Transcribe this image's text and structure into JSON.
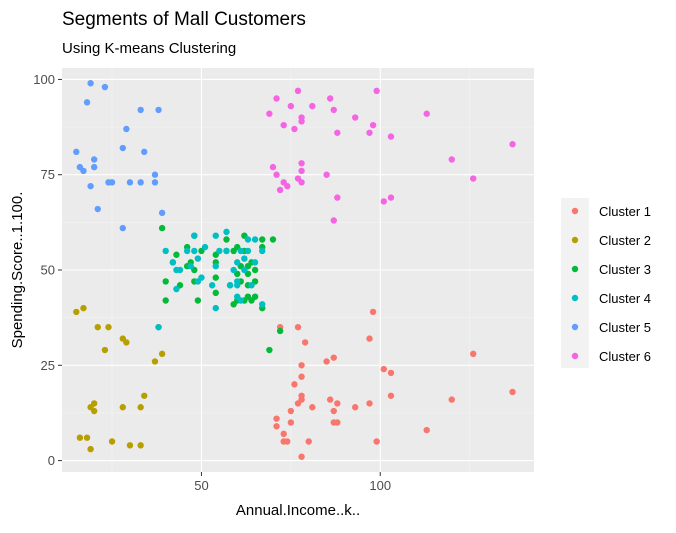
{
  "chart_data": {
    "type": "scatter",
    "title": "Segments of Mall Customers",
    "subtitle": "Using K-means Clustering",
    "xlabel": "Annual.Income..k..",
    "ylabel": "Spending.Score..1.100.",
    "xlim": [
      11,
      143
    ],
    "ylim": [
      -3,
      103
    ],
    "xticks": [
      {
        "value": 50,
        "label": "50"
      },
      {
        "value": 100,
        "label": "100"
      }
    ],
    "yticks": [
      {
        "value": 0,
        "label": "0"
      },
      {
        "value": 25,
        "label": "25"
      },
      {
        "value": 50,
        "label": "50"
      },
      {
        "value": 75,
        "label": "75"
      },
      {
        "value": 100,
        "label": "100"
      }
    ],
    "grid": true,
    "legend_position": "right",
    "colors": {
      "panel_background": "#ebebeb",
      "grid_major": "#ffffff",
      "grid_minor": "#f4f4f4"
    },
    "series": [
      {
        "name": "Cluster 1",
        "color": "#f8766d",
        "points": [
          [
            71,
            11
          ],
          [
            71,
            9
          ],
          [
            72,
            35
          ],
          [
            73,
            5
          ],
          [
            73,
            7
          ],
          [
            74,
            5
          ],
          [
            75,
            10
          ],
          [
            75,
            13
          ],
          [
            76,
            20
          ],
          [
            77,
            15
          ],
          [
            77,
            35
          ],
          [
            78,
            1
          ],
          [
            78,
            16
          ],
          [
            78,
            22
          ],
          [
            78,
            17
          ],
          [
            78,
            25
          ],
          [
            79,
            31
          ],
          [
            80,
            5
          ],
          [
            81,
            14
          ],
          [
            85,
            26
          ],
          [
            86,
            16
          ],
          [
            87,
            27
          ],
          [
            87,
            13
          ],
          [
            87,
            10
          ],
          [
            88,
            15
          ],
          [
            88,
            10
          ],
          [
            93,
            14
          ],
          [
            97,
            15
          ],
          [
            97,
            32
          ],
          [
            98,
            39
          ],
          [
            99,
            5
          ],
          [
            101,
            24
          ],
          [
            103,
            17
          ],
          [
            103,
            23
          ],
          [
            113,
            8
          ],
          [
            120,
            16
          ],
          [
            126,
            28
          ],
          [
            137,
            18
          ]
        ]
      },
      {
        "name": "Cluster 2",
        "color": "#b79f00",
        "points": [
          [
            15,
            39
          ],
          [
            16,
            6
          ],
          [
            17,
            40
          ],
          [
            18,
            6
          ],
          [
            19,
            3
          ],
          [
            19,
            14
          ],
          [
            20,
            15
          ],
          [
            20,
            13
          ],
          [
            21,
            35
          ],
          [
            23,
            29
          ],
          [
            24,
            35
          ],
          [
            25,
            5
          ],
          [
            28,
            14
          ],
          [
            28,
            32
          ],
          [
            29,
            31
          ],
          [
            33,
            4
          ],
          [
            33,
            14
          ],
          [
            34,
            17
          ],
          [
            37,
            26
          ],
          [
            38,
            35
          ],
          [
            39,
            28
          ],
          [
            30,
            4
          ]
        ]
      },
      {
        "name": "Cluster 3",
        "color": "#00ba38",
        "points": [
          [
            39,
            61
          ],
          [
            40,
            47
          ],
          [
            40,
            42
          ],
          [
            42,
            52
          ],
          [
            43,
            54
          ],
          [
            44,
            46
          ],
          [
            46,
            51
          ],
          [
            46,
            56
          ],
          [
            47,
            52
          ],
          [
            48,
            59
          ],
          [
            48,
            50
          ],
          [
            48,
            47
          ],
          [
            49,
            42
          ],
          [
            50,
            55
          ],
          [
            54,
            54
          ],
          [
            54,
            44
          ],
          [
            54,
            52
          ],
          [
            54,
            48
          ],
          [
            57,
            58
          ],
          [
            57,
            55
          ],
          [
            58,
            46
          ],
          [
            59,
            41
          ],
          [
            59,
            55
          ],
          [
            60,
            49
          ],
          [
            60,
            42
          ],
          [
            60,
            56
          ],
          [
            61,
            47
          ],
          [
            61,
            51
          ],
          [
            62,
            59
          ],
          [
            62,
            55
          ],
          [
            62,
            42
          ],
          [
            63,
            49
          ],
          [
            63,
            43
          ],
          [
            63,
            51
          ],
          [
            63,
            46
          ],
          [
            64,
            52
          ],
          [
            65,
            47
          ],
          [
            65,
            43
          ],
          [
            65,
            50
          ],
          [
            67,
            58
          ],
          [
            67,
            56
          ],
          [
            67,
            40
          ],
          [
            69,
            29
          ],
          [
            70,
            58
          ],
          [
            72,
            34
          ],
          [
            64,
            42
          ]
        ]
      },
      {
        "name": "Cluster 4",
        "color": "#00bfc4",
        "points": [
          [
            38,
            35
          ],
          [
            40,
            55
          ],
          [
            42,
            52
          ],
          [
            43,
            50
          ],
          [
            43,
            45
          ],
          [
            44,
            50
          ],
          [
            46,
            55
          ],
          [
            47,
            51
          ],
          [
            48,
            55
          ],
          [
            48,
            59
          ],
          [
            49,
            47
          ],
          [
            49,
            53
          ],
          [
            50,
            48
          ],
          [
            51,
            56
          ],
          [
            53,
            46
          ],
          [
            54,
            51
          ],
          [
            54,
            59
          ],
          [
            54,
            40
          ],
          [
            55,
            55
          ],
          [
            57,
            55
          ],
          [
            57,
            60
          ],
          [
            58,
            46
          ],
          [
            59,
            50
          ],
          [
            60,
            47
          ],
          [
            60,
            52
          ],
          [
            60,
            46
          ],
          [
            61,
            55
          ],
          [
            62,
            53
          ],
          [
            62,
            50
          ],
          [
            63,
            55
          ],
          [
            63,
            58
          ],
          [
            64,
            46
          ],
          [
            65,
            52
          ],
          [
            65,
            58
          ],
          [
            67,
            55
          ],
          [
            67,
            41
          ],
          [
            60,
            43
          ],
          [
            61,
            42
          ]
        ]
      },
      {
        "name": "Cluster 5",
        "color": "#619cff",
        "points": [
          [
            15,
            81
          ],
          [
            16,
            77
          ],
          [
            17,
            76
          ],
          [
            18,
            94
          ],
          [
            19,
            72
          ],
          [
            19,
            99
          ],
          [
            20,
            77
          ],
          [
            20,
            79
          ],
          [
            21,
            66
          ],
          [
            23,
            98
          ],
          [
            24,
            73
          ],
          [
            25,
            73
          ],
          [
            28,
            82
          ],
          [
            28,
            61
          ],
          [
            29,
            87
          ],
          [
            30,
            73
          ],
          [
            33,
            73
          ],
          [
            33,
            92
          ],
          [
            34,
            81
          ],
          [
            37,
            75
          ],
          [
            38,
            92
          ],
          [
            39,
            65
          ],
          [
            37,
            73
          ]
        ]
      },
      {
        "name": "Cluster 6",
        "color": "#f564e3",
        "points": [
          [
            69,
            91
          ],
          [
            70,
            77
          ],
          [
            71,
            95
          ],
          [
            71,
            75
          ],
          [
            72,
            71
          ],
          [
            73,
            88
          ],
          [
            73,
            73
          ],
          [
            74,
            72
          ],
          [
            75,
            93
          ],
          [
            76,
            87
          ],
          [
            77,
            97
          ],
          [
            77,
            74
          ],
          [
            78,
            90
          ],
          [
            78,
            76
          ],
          [
            78,
            89
          ],
          [
            78,
            78
          ],
          [
            78,
            73
          ],
          [
            81,
            93
          ],
          [
            85,
            75
          ],
          [
            86,
            95
          ],
          [
            87,
            63
          ],
          [
            87,
            92
          ],
          [
            88,
            86
          ],
          [
            88,
            69
          ],
          [
            93,
            90
          ],
          [
            97,
            86
          ],
          [
            98,
            88
          ],
          [
            99,
            97
          ],
          [
            101,
            68
          ],
          [
            103,
            85
          ],
          [
            103,
            69
          ],
          [
            113,
            91
          ],
          [
            120,
            79
          ],
          [
            126,
            74
          ],
          [
            137,
            83
          ]
        ]
      }
    ]
  }
}
